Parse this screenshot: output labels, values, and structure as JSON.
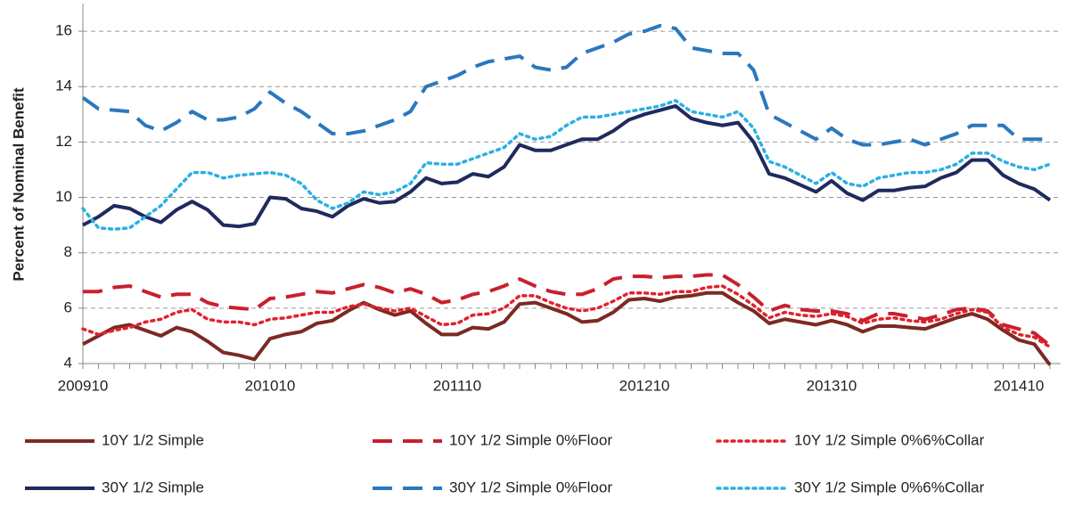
{
  "chart_data": {
    "type": "line",
    "y_label": "Percent of Nominal Benefit",
    "categories": [
      "200910",
      null,
      null,
      null,
      null,
      null,
      null,
      null,
      null,
      null,
      null,
      null,
      "201010",
      null,
      null,
      null,
      null,
      null,
      null,
      null,
      null,
      null,
      null,
      null,
      "201110",
      null,
      null,
      null,
      null,
      null,
      null,
      null,
      null,
      null,
      null,
      null,
      "201210",
      null,
      null,
      null,
      null,
      null,
      null,
      null,
      null,
      null,
      null,
      null,
      "201310",
      null,
      null,
      null,
      null,
      null,
      null,
      null,
      null,
      null,
      null,
      null,
      "201410",
      null,
      null
    ],
    "ylim": [
      4,
      17
    ],
    "yticks": [
      4,
      6,
      8,
      10,
      12,
      14,
      16
    ],
    "grid": true,
    "series": [
      {
        "name": "10Y 1/2 Simple",
        "color": "#7b2a22",
        "dash": "solid",
        "values": [
          4.7,
          5.0,
          5.3,
          5.4,
          5.2,
          5.0,
          5.3,
          5.15,
          4.8,
          4.4,
          4.3,
          4.15,
          4.9,
          5.05,
          5.15,
          5.45,
          5.55,
          5.9,
          6.2,
          5.95,
          5.75,
          5.9,
          5.45,
          5.05,
          5.05,
          5.3,
          5.25,
          5.5,
          6.15,
          6.2,
          6.0,
          5.8,
          5.5,
          5.55,
          5.85,
          6.3,
          6.35,
          6.25,
          6.4,
          6.45,
          6.55,
          6.55,
          6.2,
          5.9,
          5.45,
          5.6,
          5.5,
          5.4,
          5.55,
          5.4,
          5.15,
          5.35,
          5.35,
          5.3,
          5.25,
          5.45,
          5.65,
          5.8,
          5.6,
          5.2,
          4.85,
          4.7,
          3.95
        ]
      },
      {
        "name": "10Y 1/2 Simple 0%Floor",
        "color": "#c8202e",
        "dash": "dashed",
        "values": [
          6.6,
          6.6,
          6.75,
          6.8,
          6.6,
          6.4,
          6.5,
          6.5,
          6.2,
          6.05,
          6.0,
          5.95,
          6.35,
          6.4,
          6.5,
          6.6,
          6.55,
          6.7,
          6.85,
          6.75,
          6.55,
          6.7,
          6.5,
          6.2,
          6.3,
          6.5,
          6.6,
          6.8,
          7.05,
          6.8,
          6.6,
          6.5,
          6.5,
          6.7,
          7.05,
          7.15,
          7.15,
          7.1,
          7.15,
          7.15,
          7.2,
          7.2,
          6.85,
          6.4,
          5.9,
          6.1,
          5.95,
          5.9,
          5.9,
          5.8,
          5.55,
          5.8,
          5.8,
          5.7,
          5.6,
          5.75,
          5.95,
          6.0,
          5.9,
          5.4,
          5.25,
          5.1,
          4.65
        ]
      },
      {
        "name": "10Y 1/2 Simple 0%6%Collar",
        "color": "#e3202e",
        "dash": "dotted",
        "values": [
          5.25,
          5.05,
          5.2,
          5.3,
          5.5,
          5.6,
          5.85,
          5.95,
          5.6,
          5.5,
          5.5,
          5.4,
          5.6,
          5.65,
          5.75,
          5.85,
          5.85,
          6.05,
          6.15,
          6.0,
          5.9,
          6.0,
          5.7,
          5.4,
          5.45,
          5.75,
          5.8,
          6.0,
          6.45,
          6.45,
          6.2,
          6.0,
          5.9,
          6.0,
          6.25,
          6.55,
          6.55,
          6.5,
          6.6,
          6.6,
          6.75,
          6.8,
          6.5,
          6.1,
          5.65,
          5.85,
          5.75,
          5.7,
          5.8,
          5.7,
          5.45,
          5.6,
          5.65,
          5.55,
          5.5,
          5.6,
          5.8,
          5.95,
          5.85,
          5.3,
          5.05,
          4.95,
          4.6
        ]
      },
      {
        "name": "30Y 1/2 Simple",
        "color": "#1f2a5e",
        "dash": "solid",
        "values": [
          9.0,
          9.3,
          9.7,
          9.6,
          9.3,
          9.1,
          9.55,
          9.85,
          9.55,
          9.0,
          8.95,
          9.05,
          10.0,
          9.95,
          9.6,
          9.5,
          9.3,
          9.7,
          9.95,
          9.8,
          9.85,
          10.2,
          10.7,
          10.5,
          10.55,
          10.85,
          10.75,
          11.1,
          11.9,
          11.7,
          11.7,
          11.9,
          12.1,
          12.1,
          12.4,
          12.8,
          13.0,
          13.15,
          13.3,
          12.85,
          12.7,
          12.6,
          12.7,
          12.0,
          10.85,
          10.7,
          10.45,
          10.2,
          10.6,
          10.15,
          9.9,
          10.25,
          10.25,
          10.35,
          10.4,
          10.7,
          10.9,
          11.35,
          11.35,
          10.8,
          10.5,
          10.3,
          9.9
        ]
      },
      {
        "name": "30Y 1/2 Simple 0%Floor",
        "color": "#2a78be",
        "dash": "dashed",
        "values": [
          13.6,
          13.2,
          13.15,
          13.1,
          12.6,
          12.4,
          12.7,
          13.1,
          12.8,
          12.8,
          12.9,
          13.2,
          13.8,
          13.4,
          13.1,
          12.7,
          12.3,
          12.3,
          12.4,
          12.6,
          12.8,
          13.1,
          14.0,
          14.2,
          14.4,
          14.7,
          14.9,
          15.0,
          15.1,
          14.7,
          14.6,
          14.7,
          15.2,
          15.4,
          15.6,
          15.9,
          16.0,
          16.2,
          16.1,
          15.4,
          15.3,
          15.2,
          15.2,
          14.6,
          13.0,
          12.7,
          12.4,
          12.1,
          12.5,
          12.1,
          11.9,
          11.9,
          12.0,
          12.1,
          11.9,
          12.1,
          12.3,
          12.6,
          12.6,
          12.6,
          12.1,
          12.1,
          12.1
        ]
      },
      {
        "name": "30Y 1/2 Simple 0%6%Collar",
        "color": "#2bb0e2",
        "dash": "dotted",
        "values": [
          9.6,
          8.9,
          8.85,
          8.9,
          9.3,
          9.7,
          10.3,
          10.9,
          10.9,
          10.7,
          10.8,
          10.85,
          10.9,
          10.8,
          10.5,
          9.9,
          9.6,
          9.8,
          10.2,
          10.1,
          10.2,
          10.5,
          11.25,
          11.2,
          11.2,
          11.4,
          11.6,
          11.8,
          12.3,
          12.1,
          12.2,
          12.6,
          12.9,
          12.9,
          13.0,
          13.1,
          13.2,
          13.3,
          13.5,
          13.1,
          13.0,
          12.9,
          13.1,
          12.5,
          11.3,
          11.1,
          10.8,
          10.5,
          10.9,
          10.5,
          10.4,
          10.7,
          10.8,
          10.9,
          10.9,
          11.0,
          11.2,
          11.6,
          11.6,
          11.3,
          11.1,
          11.0,
          11.2
        ]
      }
    ]
  }
}
